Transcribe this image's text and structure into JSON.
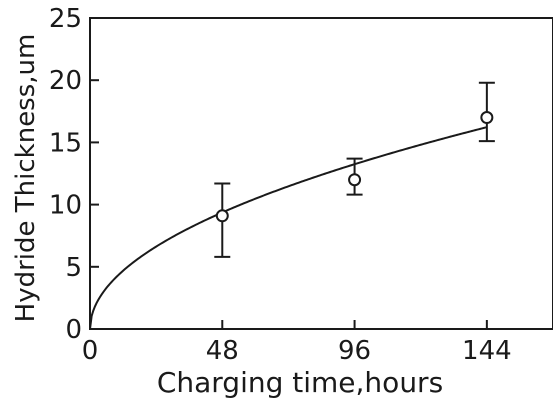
{
  "chart_data": {
    "type": "scatter",
    "title": "",
    "xlabel": "Charging time,hours",
    "ylabel": "Hydride Thickness,um",
    "xlim": [
      0,
      168
    ],
    "ylim": [
      0,
      25
    ],
    "x_ticks": [
      0,
      48,
      96,
      144
    ],
    "y_ticks": [
      0,
      5,
      10,
      15,
      20,
      25
    ],
    "grid": false,
    "legend": "none",
    "series": [
      {
        "points": [
          {
            "x": 48,
            "y": 9.1,
            "err_low": 5.8,
            "err_high": 11.7
          },
          {
            "x": 96,
            "y": 12.0,
            "err_low": 10.8,
            "err_high": 13.7
          },
          {
            "x": 144,
            "y": 17.0,
            "err_low": 15.1,
            "err_high": 19.8
          }
        ],
        "marker": "open-circle",
        "color": "#1a1a1a"
      }
    ],
    "fit_curve": {
      "form": "y = a*sqrt(x)",
      "a": 1.352,
      "x_range": [
        0,
        144
      ],
      "color": "#1a1a1a"
    }
  }
}
